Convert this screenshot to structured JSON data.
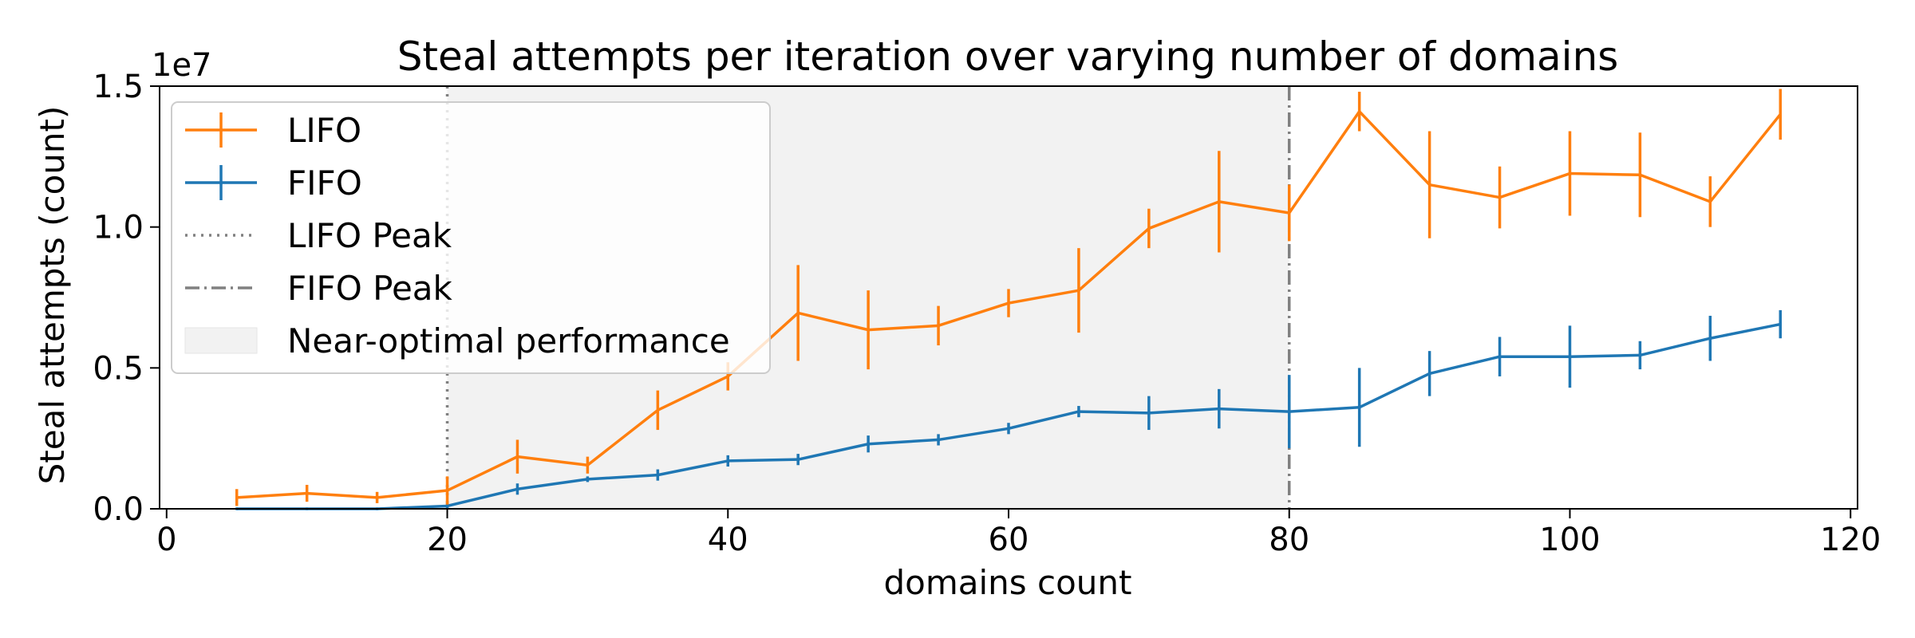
{
  "chart_data": {
    "type": "line",
    "title": "Steal attempts per iteration over varying number of domains",
    "xlabel": "domains count",
    "ylabel": "Steal attempts (count)",
    "y_offset_label": "1e7",
    "xlim": [
      -0.5,
      120.5
    ],
    "ylim": [
      0,
      1.5
    ],
    "y_scale_multiplier": 10000000,
    "x_ticks": [
      0,
      20,
      40,
      60,
      80,
      100,
      120
    ],
    "x_tick_labels": [
      "0",
      "20",
      "40",
      "60",
      "80",
      "100",
      "120"
    ],
    "y_ticks": [
      0,
      0.5,
      1.0,
      1.5
    ],
    "y_tick_labels": [
      "0.0",
      "0.5",
      "1.0",
      "1.5"
    ],
    "grid": false,
    "legend_position": "upper-left",
    "shaded_region": {
      "label": "Near-optimal performance",
      "x_start": 20,
      "x_end": 80,
      "color": "#f2f2f2"
    },
    "reference_lines": [
      {
        "label": "LIFO Peak",
        "x": 20,
        "style": "dotted",
        "color": "#808080"
      },
      {
        "label": "FIFO Peak",
        "x": 80,
        "style": "dashdot",
        "color": "#808080"
      }
    ],
    "series": [
      {
        "name": "LIFO",
        "color": "#ff7f0e",
        "x": [
          5,
          10,
          15,
          20,
          25,
          30,
          35,
          40,
          45,
          50,
          55,
          60,
          65,
          70,
          75,
          80,
          85,
          90,
          95,
          100,
          105,
          110,
          115
        ],
        "y": [
          0.04,
          0.055,
          0.04,
          0.065,
          0.185,
          0.155,
          0.35,
          0.47,
          0.695,
          0.635,
          0.65,
          0.73,
          0.775,
          0.995,
          1.09,
          1.05,
          1.41,
          1.15,
          1.105,
          1.19,
          1.185,
          1.09,
          1.4
        ],
        "err": [
          0.03,
          0.03,
          0.02,
          0.05,
          0.06,
          0.03,
          0.07,
          0.05,
          0.17,
          0.14,
          0.07,
          0.05,
          0.15,
          0.07,
          0.18,
          0.1,
          0.07,
          0.19,
          0.11,
          0.15,
          0.15,
          0.09,
          0.09
        ]
      },
      {
        "name": "FIFO",
        "color": "#1f77b4",
        "x": [
          5,
          10,
          15,
          20,
          25,
          30,
          35,
          40,
          45,
          50,
          55,
          60,
          65,
          70,
          75,
          80,
          85,
          90,
          95,
          100,
          105,
          110,
          115
        ],
        "y": [
          0.0,
          0.0,
          0.0,
          0.01,
          0.07,
          0.105,
          0.12,
          0.17,
          0.175,
          0.23,
          0.245,
          0.285,
          0.345,
          0.34,
          0.355,
          0.345,
          0.36,
          0.48,
          0.54,
          0.54,
          0.545,
          0.605,
          0.655
        ],
        "err": [
          0.0,
          0.0,
          0.0,
          0.01,
          0.02,
          0.01,
          0.02,
          0.02,
          0.02,
          0.03,
          0.02,
          0.02,
          0.02,
          0.06,
          0.07,
          0.13,
          0.14,
          0.08,
          0.07,
          0.11,
          0.05,
          0.08,
          0.05
        ]
      }
    ]
  }
}
